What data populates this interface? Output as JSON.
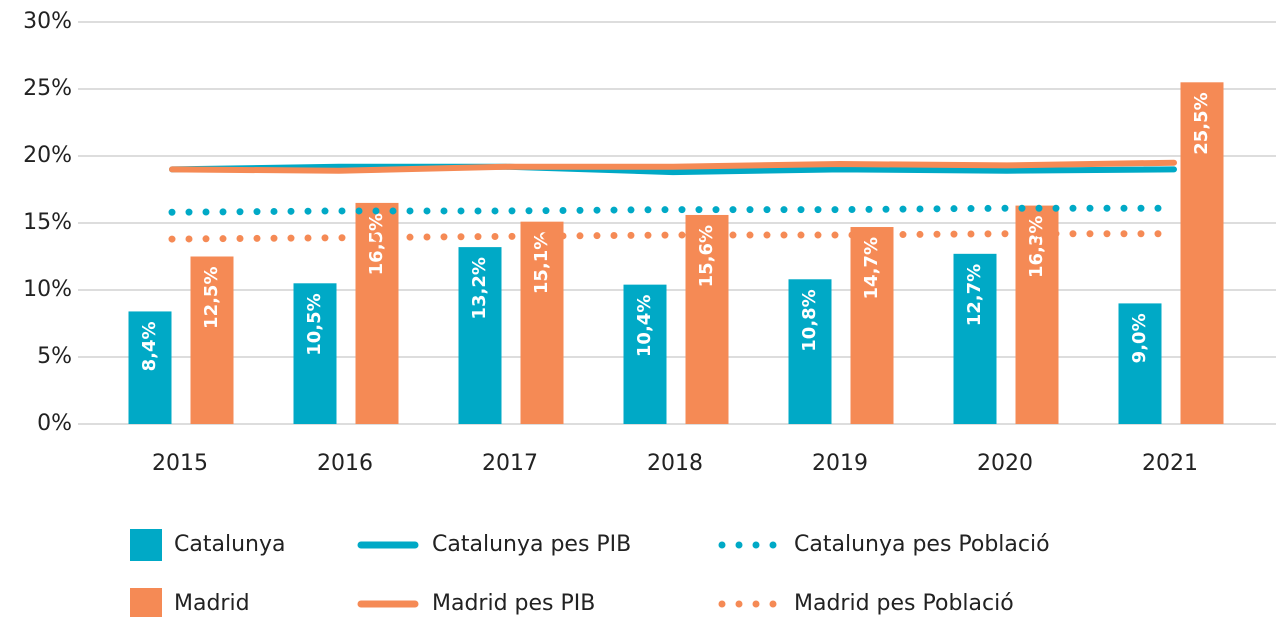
{
  "chart_data": {
    "type": "bar",
    "categories": [
      "2015",
      "2016",
      "2017",
      "2018",
      "2019",
      "2020",
      "2021"
    ],
    "ylim": [
      0,
      30
    ],
    "yticks": [
      {
        "value": 0,
        "label": "0%"
      },
      {
        "value": 5,
        "label": "5%"
      },
      {
        "value": 10,
        "label": "10%"
      },
      {
        "value": 15,
        "label": "15%"
      },
      {
        "value": 20,
        "label": "20%"
      },
      {
        "value": 25,
        "label": "25%"
      },
      {
        "value": 30,
        "label": "30%"
      }
    ],
    "grid": true,
    "series": [
      {
        "name": "Catalunya",
        "type": "bar",
        "color": "#00a9c6",
        "values": [
          8.4,
          10.5,
          13.2,
          10.4,
          10.8,
          12.7,
          9.0
        ],
        "value_labels": [
          "8,4%",
          "10,5%",
          "13,2%",
          "10,4%",
          "10,8%",
          "12,7%",
          "9,0%"
        ]
      },
      {
        "name": "Madrid",
        "type": "bar",
        "color": "#f58a55",
        "values": [
          12.5,
          16.5,
          15.1,
          15.6,
          14.7,
          16.3,
          25.5
        ],
        "value_labels": [
          "12,5%",
          "16,5%",
          "15,1%",
          "15,6%",
          "14,7%",
          "16,3%",
          "25,5%"
        ]
      },
      {
        "name": "Catalunya pes PIB",
        "type": "line",
        "style": "solid",
        "color": "#00a9c6",
        "values": [
          19.0,
          19.2,
          19.2,
          18.8,
          19.0,
          18.9,
          19.0
        ]
      },
      {
        "name": "Madrid pes PIB",
        "type": "line",
        "style": "solid",
        "color": "#f58a55",
        "values": [
          19.0,
          18.9,
          19.2,
          19.2,
          19.4,
          19.3,
          19.5
        ]
      },
      {
        "name": "Catalunya pes Població",
        "type": "line",
        "style": "dotted",
        "color": "#00a9c6",
        "values": [
          15.8,
          15.9,
          15.9,
          16.0,
          16.0,
          16.1,
          16.1
        ]
      },
      {
        "name": "Madrid pes Població",
        "type": "line",
        "style": "dotted",
        "color": "#f58a55",
        "values": [
          13.8,
          13.9,
          14.0,
          14.1,
          14.1,
          14.2,
          14.2
        ]
      }
    ]
  }
}
